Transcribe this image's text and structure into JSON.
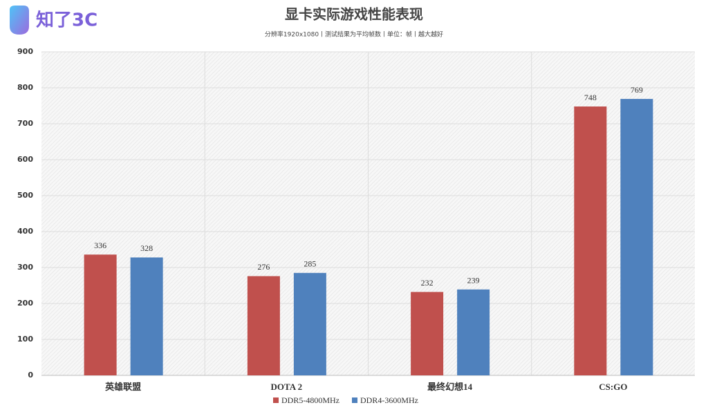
{
  "brand": "知了3C",
  "chart_data": {
    "type": "bar",
    "title": "显卡实际游戏性能表现",
    "subtitle": "分辨率1920x1080丨测试结果为平均帧数丨单位：帧丨越大越好",
    "categories": [
      "英雄联盟",
      "DOTA 2",
      "最终幻想14",
      "CS:GO"
    ],
    "series": [
      {
        "name": "DDR5-4800MHz",
        "color": "#c0504d",
        "values": [
          336,
          276,
          232,
          748
        ]
      },
      {
        "name": "DDR4-3600MHz",
        "color": "#4f81bd",
        "values": [
          328,
          285,
          239,
          769
        ]
      }
    ],
    "ylim": [
      0,
      900
    ],
    "yticks": [
      0,
      100,
      200,
      300,
      400,
      500,
      600,
      700,
      800,
      900
    ],
    "grid": true,
    "legend": "bottom"
  }
}
